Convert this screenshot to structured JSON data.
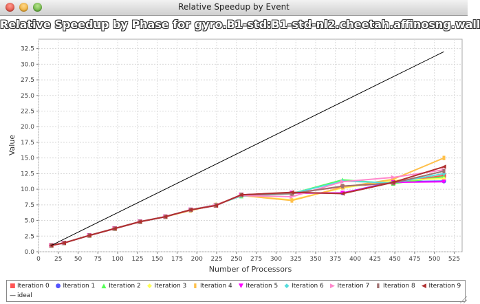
{
  "window": {
    "title": "Relative Speedup by Event"
  },
  "chart_data": {
    "type": "line",
    "title": "Relative Speedup by Phase for gyro.B1-std:B1-std-nl2.cheetah.affinosng.wall",
    "xlabel": "Number of Processors",
    "ylabel": "Value",
    "xlim": [
      0,
      535
    ],
    "ylim": [
      0,
      34
    ],
    "xticks": [
      "0",
      "25",
      "50",
      "75",
      "100",
      "125",
      "150",
      "175",
      "200",
      "225",
      "250",
      "275",
      "300",
      "325",
      "350",
      "375",
      "400",
      "425",
      "450",
      "475",
      "500",
      "525"
    ],
    "yticks": [
      "0.0",
      "2.5",
      "5.0",
      "7.5",
      "10.0",
      "12.5",
      "15.0",
      "17.5",
      "20.0",
      "22.5",
      "25.0",
      "27.5",
      "30.0",
      "32.5"
    ],
    "grid": true,
    "legend_position": "bottom",
    "x": [
      16,
      32,
      64,
      96,
      128,
      160,
      192,
      224,
      256,
      320,
      384,
      448,
      512
    ],
    "series": [
      {
        "name": "Iteration 0",
        "color": "#ff5555",
        "marker": "square",
        "values": [
          1.0,
          1.4,
          2.6,
          3.7,
          4.8,
          5.6,
          6.7,
          7.4,
          9.1,
          9.4,
          10.4,
          11.0,
          12.2
        ]
      },
      {
        "name": "Iteration 1",
        "color": "#5555ff",
        "marker": "circle",
        "values": [
          1.0,
          1.4,
          2.6,
          3.7,
          4.8,
          5.6,
          6.7,
          7.4,
          9.1,
          9.4,
          9.4,
          11.2,
          11.3
        ]
      },
      {
        "name": "Iteration 2",
        "color": "#55ff55",
        "marker": "triangle-up",
        "values": [
          1.0,
          1.4,
          2.6,
          3.7,
          4.8,
          5.6,
          6.7,
          7.5,
          8.9,
          9.3,
          11.5,
          10.9,
          12.0
        ]
      },
      {
        "name": "Iteration 3",
        "color": "#ffff55",
        "marker": "diamond",
        "values": [
          1.0,
          1.4,
          2.6,
          3.7,
          4.8,
          5.6,
          6.6,
          7.5,
          9.0,
          8.3,
          10.2,
          11.4,
          11.7
        ]
      },
      {
        "name": "Iteration 4",
        "color": "#ffc04a",
        "marker": "rect",
        "values": [
          1.0,
          1.4,
          2.6,
          3.7,
          4.8,
          5.6,
          6.6,
          7.5,
          9.0,
          8.2,
          10.3,
          11.6,
          15.0
        ]
      },
      {
        "name": "Iteration 5",
        "color": "#ff00ff",
        "marker": "triangle-down",
        "values": [
          1.0,
          1.4,
          2.6,
          3.7,
          4.8,
          5.6,
          6.7,
          7.4,
          9.1,
          9.4,
          9.4,
          11.1,
          11.2
        ]
      },
      {
        "name": "Iteration 6",
        "color": "#55dddd",
        "marker": "diamond",
        "values": [
          1.0,
          1.4,
          2.6,
          3.7,
          4.8,
          5.6,
          6.7,
          7.5,
          8.9,
          9.3,
          11.3,
          11.0,
          12.5
        ]
      },
      {
        "name": "Iteration 7",
        "color": "#ff88cc",
        "marker": "triangle-right",
        "values": [
          1.0,
          1.4,
          2.6,
          3.7,
          4.8,
          5.6,
          6.7,
          7.5,
          9.0,
          8.8,
          11.2,
          11.9,
          13.1
        ]
      },
      {
        "name": "Iteration 8",
        "color": "#a07070",
        "marker": "rect",
        "values": [
          1.0,
          1.4,
          2.6,
          3.7,
          4.8,
          5.6,
          6.7,
          7.4,
          9.1,
          9.3,
          10.5,
          11.0,
          12.9
        ]
      },
      {
        "name": "Iteration 9",
        "color": "#b03030",
        "marker": "triangle-left",
        "values": [
          1.0,
          1.4,
          2.6,
          3.7,
          4.8,
          5.6,
          6.7,
          7.4,
          9.1,
          9.5,
          9.3,
          11.1,
          13.6
        ]
      },
      {
        "name": "ideal",
        "color": "#000000",
        "marker": "none",
        "x": [
          16,
          512
        ],
        "values": [
          1.0,
          32.0
        ]
      }
    ]
  }
}
